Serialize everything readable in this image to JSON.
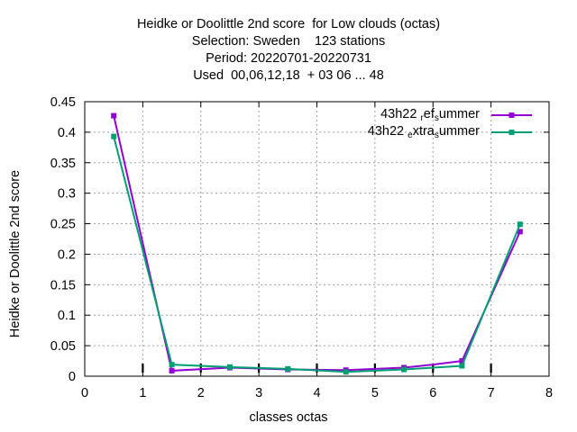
{
  "chart_data": {
    "type": "line",
    "title_lines": [
      "Heidke or Doolittle 2nd score  for Low clouds (octas)",
      "Selection: Sweden    123 stations",
      "Period: 20220701-20220731",
      "Used  00,06,12,18  + 03 06 ... 48"
    ],
    "xlabel": "classes octas",
    "ylabel": "Heidke or Doolittle 2nd score",
    "xlim": [
      0,
      8
    ],
    "ylim": [
      0,
      0.45
    ],
    "xticks": [
      "0",
      "1",
      "2",
      "3",
      "4",
      "5",
      "6",
      "7",
      "8"
    ],
    "yticks": [
      "0",
      "0.05",
      "0.1",
      "0.15",
      "0.2",
      "0.25",
      "0.3",
      "0.35",
      "0.4",
      "0.45"
    ],
    "grid": true,
    "legend_position": "top-right",
    "series": [
      {
        "name": "43h22 ref summer",
        "legend_parts": [
          "43h22 ",
          "r",
          "ef",
          "s",
          "ummer"
        ],
        "color": "#9400d3",
        "x": [
          0.5,
          1.5,
          2.5,
          3.5,
          4.5,
          5.5,
          6.5,
          7.5
        ],
        "y": [
          0.427,
          0.009,
          0.014,
          0.011,
          0.01,
          0.014,
          0.025,
          0.237
        ],
        "extra_x": [
          6.0
        ],
        "extra_y": [
          0.019
        ]
      },
      {
        "name": "43h22 extra summer",
        "legend_parts": [
          "43h22 ",
          "e",
          "xtra",
          "s",
          "ummer"
        ],
        "color": "#009e73",
        "x": [
          0.5,
          1.5,
          2.5,
          3.5,
          4.5,
          5.5,
          6.5,
          7.5
        ],
        "y": [
          0.393,
          0.019,
          0.015,
          0.012,
          0.007,
          0.011,
          0.017,
          0.249
        ]
      }
    ]
  }
}
